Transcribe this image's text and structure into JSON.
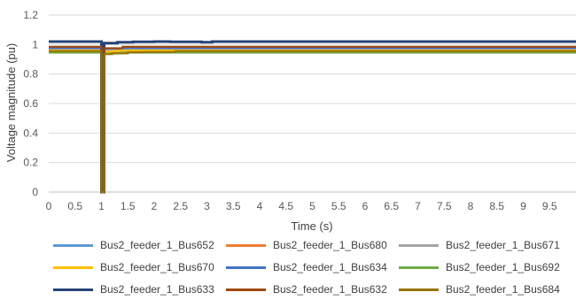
{
  "chart_data": {
    "type": "line",
    "title": "",
    "xlabel": "Time (s)",
    "ylabel": "Voltage magnitude (pu)",
    "xlim": [
      0,
      10
    ],
    "ylim": [
      0,
      1.2
    ],
    "xticks": [
      "0",
      "0.5",
      "1",
      "1.5",
      "2",
      "2.5",
      "3",
      "3.5",
      "4",
      "4.5",
      "5",
      "5.5",
      "6",
      "6.5",
      "7",
      "7.5",
      "8",
      "8.5",
      "9",
      "9.5"
    ],
    "yticks": [
      "0",
      "0.2",
      "0.4",
      "0.6",
      "0.8",
      "1",
      "1.2"
    ],
    "grid": "horizontal",
    "legend_position": "bottom",
    "series": [
      {
        "name": "Bus2_feeder_1_Bus652",
        "color": "#5b9bd5",
        "x": [
          0,
          1.0,
          1.0,
          1.05,
          1.05,
          1.5,
          10
        ],
        "y": [
          0.95,
          0.95,
          0.0,
          0.0,
          0.94,
          0.95,
          0.95
        ]
      },
      {
        "name": "Bus2_feeder_1_Bus680",
        "color": "#ed7d31",
        "x": [
          0,
          1.0,
          1.0,
          1.05,
          1.05,
          1.5,
          10
        ],
        "y": [
          0.96,
          0.96,
          0.0,
          0.0,
          0.955,
          0.96,
          0.96
        ]
      },
      {
        "name": "Bus2_feeder_1_Bus671",
        "color": "#a5a5a5",
        "x": [
          0,
          1.0,
          1.0,
          1.05,
          1.05,
          1.5,
          10
        ],
        "y": [
          0.96,
          0.96,
          0.0,
          0.0,
          0.955,
          0.96,
          0.96
        ]
      },
      {
        "name": "Bus2_feeder_1_Bus670",
        "color": "#ffc000",
        "x": [
          0,
          1.0,
          1.0,
          1.05,
          1.05,
          1.5,
          10
        ],
        "y": [
          0.96,
          0.96,
          0.0,
          0.0,
          0.95,
          0.96,
          0.96
        ]
      },
      {
        "name": "Bus2_feeder_1_Bus634",
        "color": "#4472c4",
        "x": [
          0,
          1.0,
          1.0,
          1.05,
          1.05,
          1.5,
          10
        ],
        "y": [
          0.975,
          0.975,
          0.0,
          0.0,
          0.97,
          0.975,
          0.975
        ]
      },
      {
        "name": "Bus2_feeder_1_Bus692",
        "color": "#70ad47",
        "x": [
          0,
          1.0,
          1.0,
          1.05,
          1.05,
          1.5,
          10
        ],
        "y": [
          0.945,
          0.945,
          0.0,
          0.0,
          0.935,
          0.945,
          0.945
        ]
      },
      {
        "name": "Bus2_feeder_1_Bus633",
        "color": "#264478",
        "x": [
          0,
          1.0,
          1.0,
          1.05,
          1.05,
          1.3,
          1.3,
          1.6,
          1.6,
          2.0,
          2.0,
          2.3,
          2.3,
          2.9,
          2.9,
          3.1,
          3.1,
          10
        ],
        "y": [
          1.02,
          1.02,
          0.0,
          0.0,
          1.01,
          1.01,
          1.015,
          1.015,
          1.018,
          1.018,
          1.02,
          1.02,
          1.018,
          1.018,
          1.015,
          1.015,
          1.02,
          1.02
        ]
      },
      {
        "name": "Bus2_feeder_1_Bus632",
        "color": "#9e480e",
        "x": [
          0,
          1.0,
          1.0,
          1.05,
          1.05,
          1.4,
          1.4,
          10
        ],
        "y": [
          0.985,
          0.985,
          0.0,
          0.0,
          0.975,
          0.975,
          0.985,
          0.985
        ]
      },
      {
        "name": "Bus2_feeder_1_Bus684",
        "color": "#997300",
        "x": [
          0,
          1.0,
          1.0,
          1.05,
          1.05,
          1.2,
          1.2,
          1.5,
          1.5,
          1.8,
          1.8,
          2.4,
          2.4,
          10
        ],
        "y": [
          0.955,
          0.955,
          0.0,
          0.0,
          0.935,
          0.935,
          0.94,
          0.94,
          0.948,
          0.948,
          0.95,
          0.95,
          0.955,
          0.955
        ]
      }
    ]
  }
}
